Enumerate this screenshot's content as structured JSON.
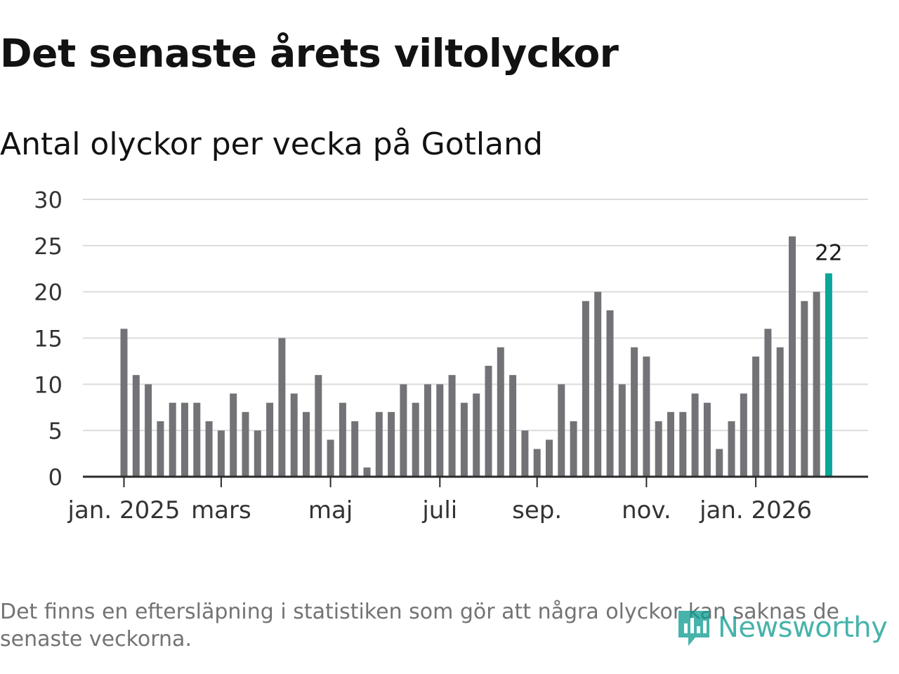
{
  "title": "Det senaste årets viltolyckor",
  "subtitle": "Antal olyckor per vecka på Gotland",
  "footnote": "Det finns en eftersläpning i statistiken som gör att några olyckor kan saknas de senaste veckorna.",
  "brand": {
    "name": "Newsworthy",
    "icon": "newsworthy-logo-icon"
  },
  "colors": {
    "bar": "#737277",
    "highlight": "#0ba69a",
    "grid": "#dcdcdc",
    "axis": "#2b2b2b",
    "tick_text": "#333333",
    "logo": "#0a9a8f"
  },
  "chart_data": {
    "type": "bar",
    "title": "Det senaste årets viltolyckor",
    "subtitle": "Antal olyckor per vecka på Gotland",
    "xlabel": "",
    "ylabel": "",
    "ylim": [
      0,
      30
    ],
    "yticks": [
      0,
      5,
      10,
      15,
      20,
      25,
      30
    ],
    "grid": true,
    "unit": "antal olyckor per vecka",
    "values": [
      16,
      11,
      10,
      6,
      8,
      8,
      8,
      6,
      5,
      9,
      7,
      5,
      8,
      15,
      9,
      7,
      11,
      4,
      8,
      6,
      1,
      7,
      7,
      10,
      8,
      10,
      10,
      11,
      8,
      9,
      12,
      14,
      11,
      5,
      3,
      4,
      10,
      6,
      19,
      20,
      18,
      10,
      14,
      13,
      6,
      7,
      7,
      9,
      8,
      3,
      6,
      9,
      13,
      16,
      14,
      26,
      19,
      20,
      22
    ],
    "x_tick_labels": [
      {
        "label": "jan. 2025",
        "bar_index": 0
      },
      {
        "label": "mars",
        "bar_index": 8
      },
      {
        "label": "maj",
        "bar_index": 17
      },
      {
        "label": "juli",
        "bar_index": 26
      },
      {
        "label": "sep.",
        "bar_index": 34
      },
      {
        "label": "nov.",
        "bar_index": 43
      },
      {
        "label": "jan. 2026",
        "bar_index": 52
      }
    ],
    "highlight_index": 58,
    "highlight_label": "22"
  }
}
